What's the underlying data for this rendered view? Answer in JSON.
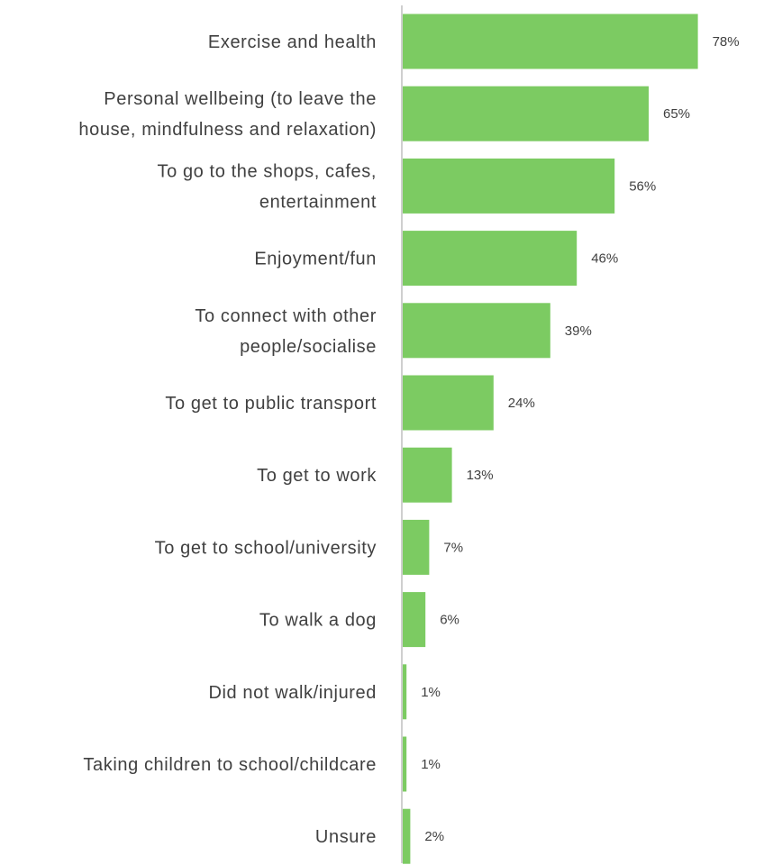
{
  "chart_data": {
    "type": "bar",
    "orientation": "horizontal",
    "categories": [
      [
        "Exercise and health"
      ],
      [
        "Personal wellbeing (to leave the",
        "house, mindfulness and relaxation)"
      ],
      [
        "To go to the shops, cafes,",
        "entertainment"
      ],
      [
        "Enjoyment/fun"
      ],
      [
        "To connect with other",
        "people/socialise"
      ],
      [
        "To get to public transport"
      ],
      [
        "To get to work"
      ],
      [
        "To get to school/university"
      ],
      [
        "To walk a dog"
      ],
      [
        "Did not walk/injured"
      ],
      [
        "Taking children to school/childcare"
      ],
      [
        "Unsure"
      ]
    ],
    "values": [
      78,
      65,
      56,
      46,
      39,
      24,
      13,
      7,
      6,
      1,
      1,
      2
    ],
    "value_labels": [
      "78%",
      "65%",
      "56%",
      "46%",
      "39%",
      "24%",
      "13%",
      "7%",
      "6%",
      "1%",
      "1%",
      "2%"
    ],
    "unit": "%",
    "bar_color": "#7CCB62",
    "axis_color": "#BFBFBF",
    "grid": false,
    "legend": "none"
  }
}
